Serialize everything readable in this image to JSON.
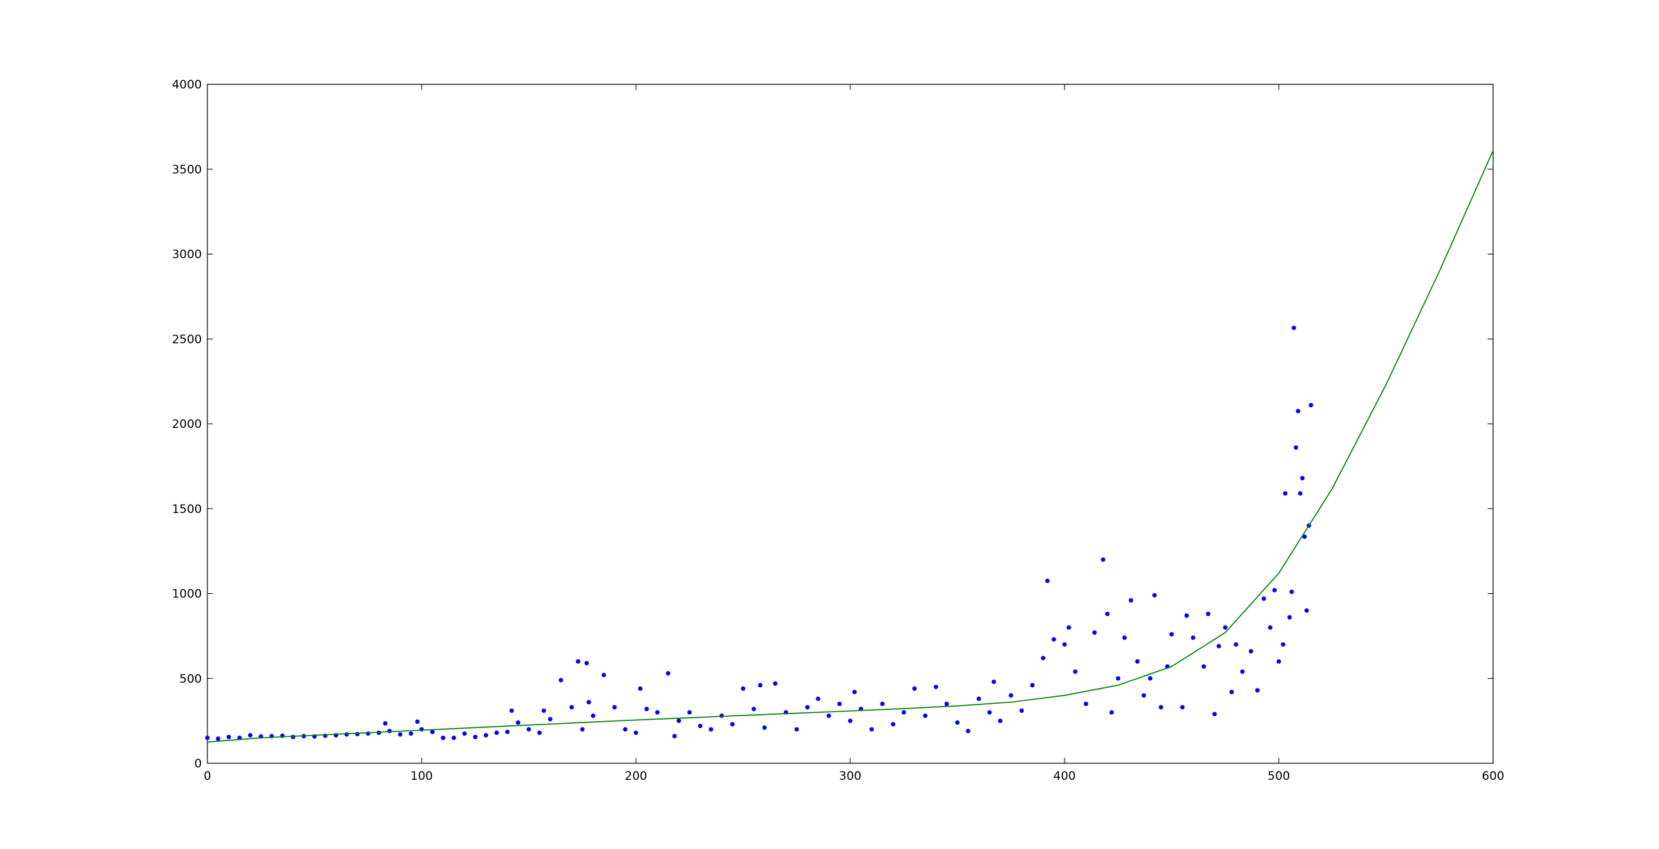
{
  "chart_data": {
    "type": "scatter",
    "xlim": [
      0,
      600
    ],
    "xticks": [
      0,
      100,
      200,
      300,
      400,
      500,
      600
    ],
    "ylim": [
      0,
      4000
    ],
    "yticks": [
      0,
      500,
      1000,
      1500,
      2000,
      2500,
      3000,
      3500,
      4000
    ],
    "grid": false,
    "series": [
      {
        "type": "scatter",
        "color": "#0000ff",
        "x": [
          0,
          5,
          10,
          15,
          20,
          25,
          30,
          35,
          40,
          45,
          50,
          55,
          60,
          65,
          70,
          75,
          80,
          83,
          85,
          90,
          95,
          98,
          100,
          105,
          110,
          115,
          120,
          125,
          130,
          135,
          140,
          142,
          145,
          150,
          155,
          157,
          160,
          165,
          170,
          173,
          175,
          177,
          178,
          180,
          185,
          190,
          195,
          200,
          202,
          205,
          210,
          215,
          218,
          220,
          225,
          230,
          235,
          240,
          245,
          250,
          255,
          258,
          260,
          265,
          270,
          275,
          280,
          285,
          290,
          295,
          300,
          302,
          305,
          310,
          315,
          320,
          325,
          330,
          335,
          340,
          345,
          350,
          355,
          360,
          365,
          367,
          370,
          375,
          380,
          385,
          390,
          392,
          395,
          400,
          402,
          405,
          410,
          414,
          418,
          420,
          422,
          425,
          428,
          431,
          434,
          437,
          440,
          442,
          445,
          448,
          450,
          455,
          457,
          460,
          465,
          467,
          470,
          472,
          475,
          478,
          480,
          483,
          487,
          490,
          493,
          496,
          498,
          500,
          502,
          503,
          505,
          506,
          507,
          508,
          509,
          510,
          511,
          512,
          513,
          514,
          515
        ],
        "values": [
          150,
          145,
          155,
          150,
          165,
          158,
          160,
          162,
          155,
          160,
          158,
          162,
          165,
          170,
          172,
          175,
          180,
          235,
          190,
          170,
          175,
          245,
          200,
          185,
          150,
          150,
          175,
          155,
          165,
          180,
          185,
          310,
          240,
          200,
          180,
          310,
          260,
          490,
          330,
          600,
          200,
          590,
          360,
          280,
          520,
          330,
          200,
          180,
          440,
          320,
          300,
          530,
          160,
          250,
          300,
          220,
          200,
          280,
          230,
          440,
          320,
          460,
          210,
          470,
          300,
          200,
          330,
          380,
          280,
          350,
          250,
          420,
          320,
          200,
          350,
          230,
          300,
          440,
          280,
          450,
          350,
          240,
          190,
          380,
          300,
          480,
          250,
          400,
          310,
          460,
          620,
          1075,
          730,
          700,
          800,
          540,
          350,
          770,
          1200,
          880,
          300,
          500,
          740,
          960,
          600,
          400,
          500,
          990,
          330,
          570,
          760,
          330,
          870,
          740,
          570,
          880,
          290,
          690,
          800,
          420,
          700,
          540,
          660,
          430,
          970,
          800,
          1020,
          600,
          700,
          1590,
          860,
          1010,
          2565,
          1860,
          2075,
          1590,
          1680,
          1335,
          900,
          1400,
          2110
        ]
      },
      {
        "type": "line",
        "color": "#008000",
        "x": [
          0,
          25,
          50,
          75,
          100,
          125,
          150,
          175,
          200,
          225,
          250,
          275,
          300,
          325,
          350,
          375,
          400,
          425,
          450,
          475,
          500,
          525,
          550,
          575,
          600
        ],
        "values": [
          125,
          150,
          165,
          180,
          195,
          210,
          225,
          240,
          255,
          268,
          282,
          295,
          308,
          322,
          338,
          360,
          400,
          460,
          570,
          770,
          1120,
          1620,
          2230,
          2900,
          3610
        ]
      }
    ]
  }
}
